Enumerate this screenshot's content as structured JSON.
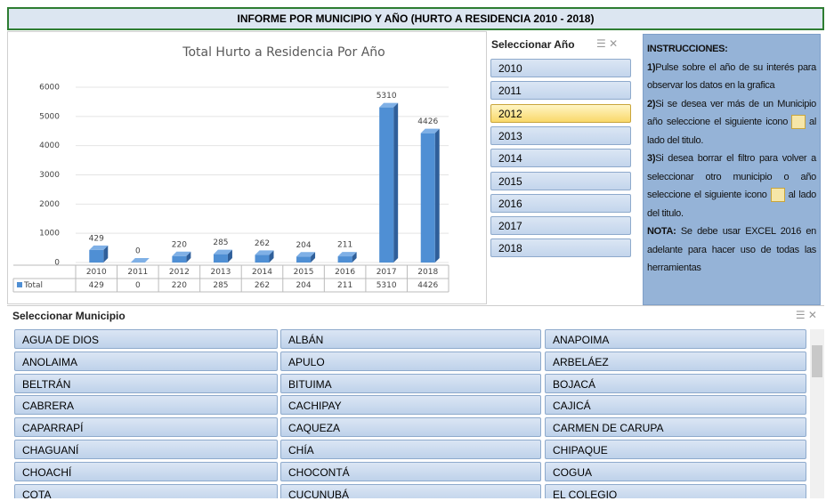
{
  "header": {
    "title": "INFORME POR MUNICIPIO Y AÑO  (HURTO A RESIDENCIA 2010 - 2018)"
  },
  "chart_data": {
    "type": "bar",
    "title": "Total Hurto a Residencia Por Año",
    "categories": [
      "2010",
      "2011",
      "2012",
      "2013",
      "2014",
      "2015",
      "2016",
      "2017",
      "2018"
    ],
    "series": [
      {
        "name": "Total",
        "color": "#4f8fd4",
        "values": [
          429,
          0,
          220,
          285,
          262,
          204,
          211,
          5310,
          4426
        ]
      }
    ],
    "ylim": [
      0,
      6000
    ],
    "yticks": [
      0,
      1000,
      2000,
      3000,
      4000,
      5000,
      6000
    ],
    "grid": true,
    "legend": "bottom-left"
  },
  "year_slicer": {
    "title": "Seleccionar Año",
    "items": [
      "2010",
      "2011",
      "2012",
      "2013",
      "2014",
      "2015",
      "2016",
      "2017",
      "2018"
    ],
    "selected": "2012"
  },
  "instructions": {
    "title": "INSTRUCCIONES:",
    "steps": [
      {
        "num": "1)",
        "text": "Pulse sobre el año de su interés para observar los datos en la grafica"
      },
      {
        "num": "2)",
        "text": "Si se desea ver más de un Municipio año seleccione el siguiente icono",
        "after": "al lado del titulo."
      },
      {
        "num": "3)",
        "text": "Si desea borrar el filtro para volver a seleccionar otro municipio o año seleccione el siguiente icono",
        "after": "al lado del titulo."
      }
    ],
    "note": {
      "label": "NOTA:",
      "text": "Se debe usar EXCEL 2016 en adelante para hacer uso de todas las herramientas"
    }
  },
  "municipio_slicer": {
    "title": "Seleccionar Municipio",
    "items": [
      "AGUA DE DIOS",
      "ALBÁN",
      "ANAPOIMA",
      "ANOLAIMA",
      "APULO",
      "ARBELÁEZ",
      "BELTRÁN",
      "BITUIMA",
      "BOJACÁ",
      "CABRERA",
      "CACHIPAY",
      "CAJICÁ",
      "CAPARRAPÍ",
      "CAQUEZA",
      "CARMEN DE CARUPA",
      "CHAGUANÍ",
      "CHÍA",
      "CHIPAQUE",
      "CHOACHÍ",
      "CHOCONTÁ",
      "COGUA",
      "COTA",
      "CUCUNUBÁ",
      "EL COLEGIO"
    ]
  }
}
